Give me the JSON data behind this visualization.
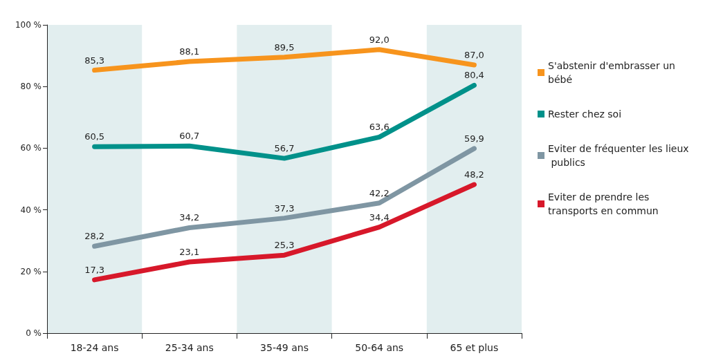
{
  "chart_data": {
    "type": "line",
    "categories": [
      "18-24 ans",
      "25-34 ans",
      "35-49 ans",
      "50-64 ans",
      "65 et plus"
    ],
    "series": [
      {
        "name": "S'abstenir d'embrasser un bébé",
        "color": "#f7941d",
        "values": [
          85.3,
          88.1,
          89.5,
          92.0,
          87.0
        ],
        "value_labels": [
          "85,3",
          "88,1",
          "89,5",
          "92,0",
          "87,0"
        ]
      },
      {
        "name": "Rester chez soi",
        "color": "#00918a",
        "values": [
          60.5,
          60.7,
          56.7,
          63.6,
          80.4
        ],
        "value_labels": [
          "60,5",
          "60,7",
          "56,7",
          "63,6",
          "80,4"
        ]
      },
      {
        "name": "Eviter de fréquenter les lieux publics",
        "color": "#7f96a3",
        "values": [
          28.2,
          34.2,
          37.3,
          42.2,
          59.9
        ],
        "value_labels": [
          "28,2",
          "34,2",
          "37,3",
          "42,2",
          "59,9"
        ]
      },
      {
        "name": "Eviter de prendre les transports en commun",
        "color": "#d7182a",
        "values": [
          17.3,
          23.1,
          25.3,
          34.4,
          48.2
        ],
        "value_labels": [
          "17,3",
          "23,1",
          "25,3",
          "34,4",
          "48,2"
        ]
      }
    ],
    "ylim": [
      0,
      100
    ],
    "yticks": [
      {
        "value": 0,
        "label": "0 %"
      },
      {
        "value": 20,
        "label": "20 %"
      },
      {
        "value": 40,
        "label": "40 %"
      },
      {
        "value": 60,
        "label": "60 %"
      },
      {
        "value": 80,
        "label": "80 %"
      },
      {
        "value": 100,
        "label": "100 %"
      }
    ],
    "grid": false,
    "legend": "right",
    "marker": "none",
    "line_style": "solid"
  }
}
